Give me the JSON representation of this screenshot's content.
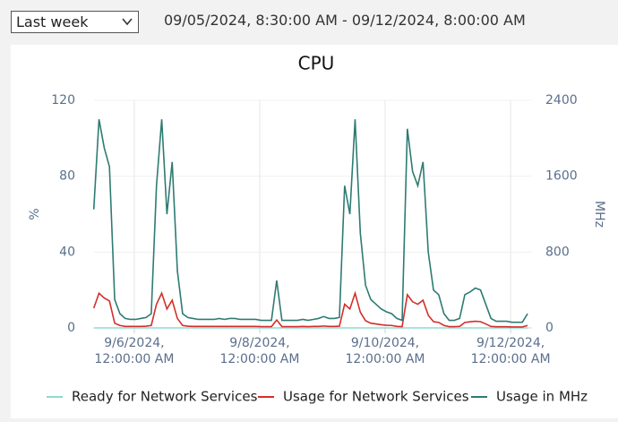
{
  "controls": {
    "range_select": "Last week",
    "date_range": "09/05/2024, 8:30:00 AM - 09/12/2024, 8:00:00 AM"
  },
  "chart_data": {
    "type": "line",
    "title": "CPU",
    "y_label": "%",
    "y2_label": "MHz",
    "grid": true,
    "legend": "bottom",
    "xlim": [
      "2024-09-05T08:30",
      "2024-09-12T08:00"
    ],
    "xticks": [
      {
        "value": "2024-09-06T00:00",
        "label": [
          "9/6/2024,",
          "12:00:00 AM"
        ]
      },
      {
        "value": "2024-09-08T00:00",
        "label": [
          "9/8/2024,",
          "12:00:00 AM"
        ]
      },
      {
        "value": "2024-09-10T00:00",
        "label": [
          "9/10/2024,",
          "12:00:00 AM"
        ]
      },
      {
        "value": "2024-09-12T00:00",
        "label": [
          "9/12/2024,",
          "12:00:00 AM"
        ]
      }
    ],
    "ylim": [
      0,
      120
    ],
    "yticks": [
      0,
      40,
      80,
      120
    ],
    "y2lim": [
      0,
      2400
    ],
    "y2ticks": [
      0,
      800,
      1600,
      2400
    ],
    "x": [
      "2024-09-05T08:30",
      "2024-09-05T10:30",
      "2024-09-05T12:30",
      "2024-09-05T14:30",
      "2024-09-05T16:30",
      "2024-09-05T18:30",
      "2024-09-05T20:30",
      "2024-09-05T22:30",
      "2024-09-06T00:30",
      "2024-09-06T02:30",
      "2024-09-06T04:30",
      "2024-09-06T06:30",
      "2024-09-06T08:30",
      "2024-09-06T10:30",
      "2024-09-06T12:30",
      "2024-09-06T14:30",
      "2024-09-06T16:30",
      "2024-09-06T18:30",
      "2024-09-06T20:30",
      "2024-09-06T22:30",
      "2024-09-07T00:30",
      "2024-09-07T02:30",
      "2024-09-07T04:30",
      "2024-09-07T06:30",
      "2024-09-07T08:30",
      "2024-09-07T10:30",
      "2024-09-07T12:30",
      "2024-09-07T14:30",
      "2024-09-07T16:30",
      "2024-09-07T18:30",
      "2024-09-07T20:30",
      "2024-09-07T22:30",
      "2024-09-08T00:30",
      "2024-09-08T02:30",
      "2024-09-08T04:30",
      "2024-09-08T06:30",
      "2024-09-08T08:30",
      "2024-09-08T10:30",
      "2024-09-08T12:30",
      "2024-09-08T14:30",
      "2024-09-08T16:30",
      "2024-09-08T18:30",
      "2024-09-08T20:30",
      "2024-09-08T22:30",
      "2024-09-09T00:30",
      "2024-09-09T02:30",
      "2024-09-09T04:30",
      "2024-09-09T06:30",
      "2024-09-09T08:30",
      "2024-09-09T10:30",
      "2024-09-09T12:30",
      "2024-09-09T14:30",
      "2024-09-09T16:30",
      "2024-09-09T18:30",
      "2024-09-09T20:30",
      "2024-09-09T22:30",
      "2024-09-10T00:30",
      "2024-09-10T02:30",
      "2024-09-10T04:30",
      "2024-09-10T06:30",
      "2024-09-10T08:30",
      "2024-09-10T10:30",
      "2024-09-10T12:30",
      "2024-09-10T14:30",
      "2024-09-10T16:30",
      "2024-09-10T18:30",
      "2024-09-10T20:30",
      "2024-09-10T22:30",
      "2024-09-11T00:30",
      "2024-09-11T02:30",
      "2024-09-11T04:30",
      "2024-09-11T06:30",
      "2024-09-11T08:30",
      "2024-09-11T10:30",
      "2024-09-11T12:30",
      "2024-09-11T14:30",
      "2024-09-11T16:30",
      "2024-09-11T18:30",
      "2024-09-11T20:30",
      "2024-09-11T22:30",
      "2024-09-12T00:30",
      "2024-09-12T02:30",
      "2024-09-12T04:30",
      "2024-09-12T06:30"
    ],
    "series": [
      {
        "name": "Ready for Network Services",
        "color": "#8fdcd0",
        "axis": "y",
        "values": [
          0,
          0,
          0,
          0,
          0,
          0,
          0,
          0,
          0,
          0,
          0,
          0,
          0,
          0,
          0,
          0,
          0,
          0,
          0,
          0,
          0,
          0,
          0,
          0,
          0,
          0,
          0,
          0,
          0,
          0,
          0,
          0,
          0,
          0,
          0,
          0,
          0,
          0,
          0,
          0,
          0,
          0,
          0,
          0,
          0,
          0,
          0,
          0,
          0,
          0,
          0,
          0,
          0,
          0,
          0,
          0,
          0,
          0,
          0,
          0,
          0,
          0,
          0,
          0,
          0,
          0,
          0,
          0,
          0,
          0,
          0,
          0,
          0,
          0,
          0,
          0,
          0,
          0,
          0,
          0,
          0,
          0,
          0,
          0
        ]
      },
      {
        "name": "Usage for Network Services",
        "color": "#d1302b",
        "axis": "y",
        "values": [
          10.4,
          18.3,
          15.8,
          14.2,
          2.5,
          1.3,
          0.8,
          0.8,
          0.8,
          0.8,
          0.9,
          1.3,
          12.5,
          18.3,
          10,
          14.6,
          5,
          1.3,
          0.9,
          0.8,
          0.8,
          0.8,
          0.8,
          0.8,
          0.8,
          0.8,
          0.8,
          0.8,
          0.8,
          0.8,
          0.8,
          0.8,
          0.7,
          0.7,
          0.7,
          4.2,
          0.7,
          0.7,
          0.7,
          0.7,
          0.8,
          0.7,
          0.8,
          0.8,
          1,
          0.8,
          0.8,
          0.9,
          12.5,
          10,
          18.3,
          8.3,
          3.8,
          2.5,
          2.1,
          1.7,
          1.4,
          1.3,
          0.8,
          0.7,
          17.5,
          13.8,
          12.5,
          14.6,
          6.7,
          3.3,
          2.9,
          1.3,
          0.7,
          0.7,
          0.8,
          2.9,
          3.2,
          3.5,
          3.3,
          2.1,
          0.8,
          0.6,
          0.6,
          0.6,
          0.5,
          0.5,
          0.5,
          1.3
        ]
      },
      {
        "name": "Usage in MHz",
        "color": "#2e7b73",
        "axis": "y2",
        "values": [
          1250,
          2200,
          1900,
          1700,
          300,
          150,
          100,
          90,
          90,
          100,
          110,
          150,
          1500,
          2200,
          1200,
          1750,
          600,
          150,
          110,
          100,
          90,
          90,
          90,
          90,
          100,
          90,
          100,
          100,
          90,
          90,
          90,
          90,
          80,
          80,
          80,
          500,
          80,
          80,
          80,
          80,
          90,
          80,
          90,
          100,
          120,
          100,
          100,
          110,
          1500,
          1200,
          2200,
          1000,
          450,
          300,
          250,
          200,
          170,
          150,
          100,
          80,
          2100,
          1650,
          1500,
          1750,
          800,
          400,
          350,
          150,
          80,
          80,
          100,
          350,
          380,
          420,
          400,
          250,
          100,
          70,
          70,
          70,
          60,
          60,
          60,
          150
        ]
      }
    ]
  }
}
